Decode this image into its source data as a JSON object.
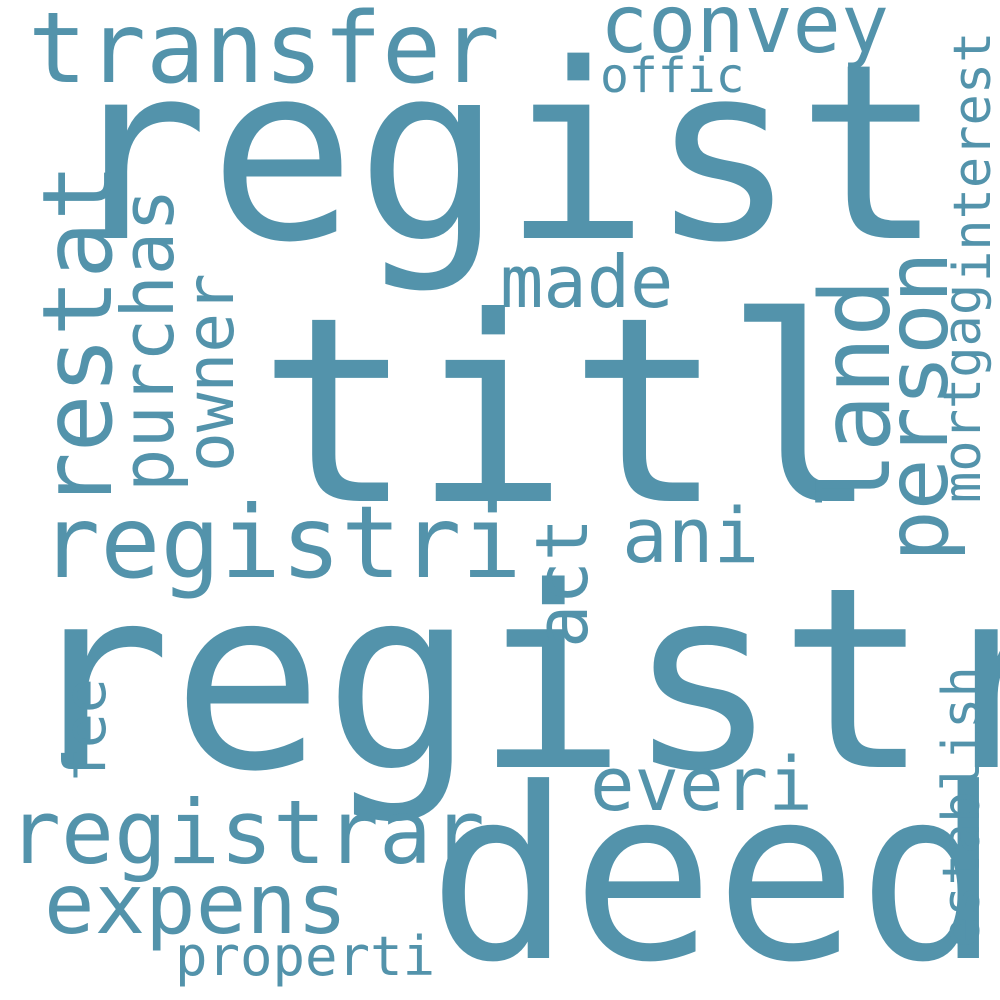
{
  "colors": {
    "background": "#ffffff",
    "word": "#5393ab"
  },
  "words": {
    "regist": "regist",
    "titl": "titl",
    "registr": "registr",
    "deed": "deed",
    "transfer": "transfer",
    "convey": "convey",
    "offic": "offic",
    "interest": "interest",
    "made": "made",
    "restat": "restat",
    "purchas": "purchas",
    "owner": "owner",
    "land": "land",
    "person": "person",
    "mortgag": "mortgag",
    "registri": "registri",
    "ani": "ani",
    "act": "act",
    "establish": "establish",
    "fee": "fee",
    "everi": "everi",
    "registrar": "registrar",
    "expens": "expens",
    "properti": "properti"
  }
}
